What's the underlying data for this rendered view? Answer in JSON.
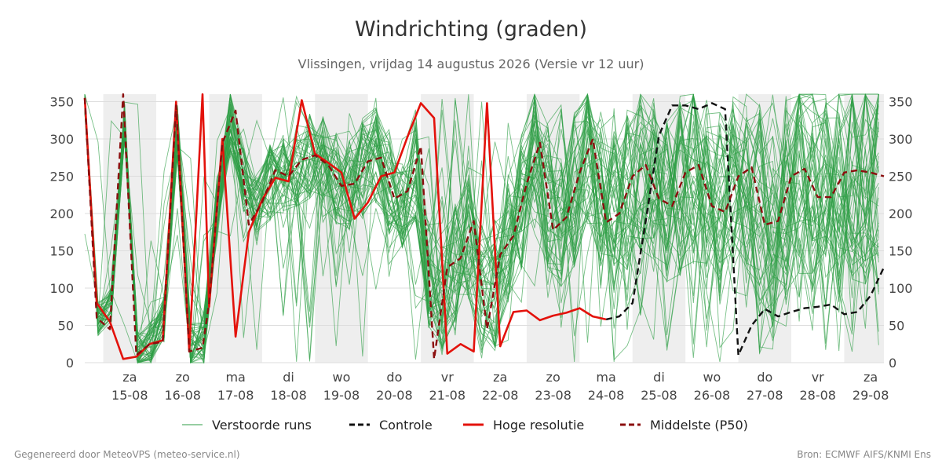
{
  "chart_data": {
    "type": "line",
    "title": "Windrichting (graden)",
    "subtitle": "Vlissingen, vrijdag 14 augustus 2026 (Versie vr 12 uur)",
    "ylim": [
      0,
      360
    ],
    "yticks": [
      0,
      50,
      100,
      150,
      200,
      250,
      300,
      350
    ],
    "x_range_days": [
      14.65,
      29.75
    ],
    "day_ticks": [
      {
        "day": 15,
        "top": "za",
        "bottom": "15-08"
      },
      {
        "day": 16,
        "top": "zo",
        "bottom": "16-08"
      },
      {
        "day": 17,
        "top": "ma",
        "bottom": "17-08"
      },
      {
        "day": 18,
        "top": "di",
        "bottom": "18-08"
      },
      {
        "day": 19,
        "top": "wo",
        "bottom": "19-08"
      },
      {
        "day": 20,
        "top": "do",
        "bottom": "20-08"
      },
      {
        "day": 21,
        "top": "vr",
        "bottom": "21-08"
      },
      {
        "day": 22,
        "top": "za",
        "bottom": "22-08"
      },
      {
        "day": 23,
        "top": "zo",
        "bottom": "23-08"
      },
      {
        "day": 24,
        "top": "ma",
        "bottom": "24-08"
      },
      {
        "day": 25,
        "top": "di",
        "bottom": "25-08"
      },
      {
        "day": 26,
        "top": "wo",
        "bottom": "26-08"
      },
      {
        "day": 27,
        "top": "do",
        "bottom": "27-08"
      },
      {
        "day": 28,
        "top": "vr",
        "bottom": "28-08"
      },
      {
        "day": 29,
        "top": "za",
        "bottom": "29-08"
      }
    ],
    "shaded_days": [
      [
        15,
        16
      ],
      [
        17,
        18
      ],
      [
        19,
        20
      ],
      [
        21,
        22
      ],
      [
        23,
        24
      ],
      [
        25,
        26
      ],
      [
        27,
        28
      ],
      [
        29,
        29.75
      ]
    ],
    "grid": true,
    "legend_position": "bottom",
    "series": [
      {
        "name": "Controle",
        "color": "#111111",
        "style": "dashed",
        "x": [
          24.5,
          24.75,
          25.0,
          25.25,
          25.5,
          25.75,
          26.0,
          26.25,
          26.5,
          26.75,
          27.0,
          27.25,
          27.5,
          27.75,
          28.0,
          28.25,
          28.5,
          28.75,
          29.0,
          29.25,
          29.5,
          29.75
        ],
        "y": [
          58,
          62,
          80,
          190,
          305,
          345,
          345,
          340,
          348,
          340,
          10,
          50,
          72,
          62,
          68,
          73,
          75,
          78,
          65,
          68,
          90,
          128
        ]
      },
      {
        "name": "Hoge resolutie",
        "color": "#e3120b",
        "style": "solid",
        "x": [
          14.65,
          14.875,
          15.125,
          15.375,
          15.625,
          15.875,
          16.125,
          16.375,
          16.625,
          16.875,
          17.0,
          17.25,
          17.5,
          17.75,
          18.0,
          18.25,
          18.5,
          18.75,
          19.0,
          19.25,
          19.5,
          19.75,
          20.0,
          20.25,
          20.5,
          20.75,
          21.0,
          21.25,
          21.5,
          21.75,
          22.0,
          22.25,
          22.5,
          22.75,
          23.0,
          23.25,
          23.5,
          23.75,
          24.0,
          24.25,
          24.5
        ],
        "y": [
          355,
          80,
          55,
          5,
          8,
          25,
          30,
          350,
          15,
          360,
          75,
          300,
          35,
          175,
          218,
          248,
          243,
          352,
          280,
          268,
          255,
          193,
          215,
          250,
          255,
          303,
          348,
          328,
          12,
          25,
          15,
          348,
          22,
          68,
          70,
          57,
          63,
          67,
          73,
          62,
          58
        ]
      },
      {
        "name": "Middelste (P50)",
        "color": "#8b0e0e",
        "style": "dashed",
        "x": [
          14.65,
          14.875,
          15.125,
          15.375,
          15.625,
          15.875,
          16.125,
          16.375,
          16.625,
          16.875,
          17.0,
          17.25,
          17.5,
          17.75,
          18.0,
          18.25,
          18.5,
          18.75,
          19.0,
          19.25,
          19.5,
          19.75,
          20.0,
          20.25,
          20.5,
          20.75,
          21.0,
          21.25,
          21.5,
          21.75,
          22.0,
          22.25,
          22.5,
          22.75,
          23.0,
          23.25,
          23.5,
          23.75,
          24.0,
          24.25,
          24.5,
          24.75,
          25.0,
          25.25,
          25.5,
          25.75,
          26.0,
          26.25,
          26.5,
          26.75,
          27.0,
          27.25,
          27.5,
          27.75,
          28.0,
          28.25,
          28.5,
          28.75,
          29.0,
          29.25,
          29.5,
          29.75
        ],
        "y": [
          355,
          60,
          45,
          360,
          10,
          25,
          28,
          345,
          15,
          20,
          80,
          295,
          338,
          185,
          215,
          258,
          250,
          272,
          278,
          265,
          237,
          240,
          270,
          275,
          220,
          230,
          290,
          5,
          128,
          140,
          190,
          45,
          145,
          170,
          240,
          295,
          178,
          195,
          255,
          300,
          188,
          200,
          250,
          265,
          220,
          210,
          255,
          265,
          210,
          202,
          250,
          262,
          185,
          190,
          250,
          260,
          222,
          222,
          255,
          258,
          255,
          250
        ]
      }
    ],
    "ensemble": {
      "name": "Verstoorde runs",
      "color": "#2e9e45",
      "members": 50,
      "description_note": ""
    }
  },
  "legend": {
    "items": [
      {
        "label": "Verstoorde runs",
        "color": "#2e9e45",
        "style": "thin"
      },
      {
        "label": "Controle",
        "color": "#111111",
        "style": "dashed"
      },
      {
        "label": "Hoge resolutie",
        "color": "#e3120b",
        "style": "solid"
      },
      {
        "label": "Middelste (P50)",
        "color": "#8b0e0e",
        "style": "dashed"
      }
    ]
  },
  "footer": {
    "left": "Gegenereerd door MeteoVPS (meteo-service.nl)",
    "right": "Bron: ECMWF AIFS/KNMI Ens"
  }
}
